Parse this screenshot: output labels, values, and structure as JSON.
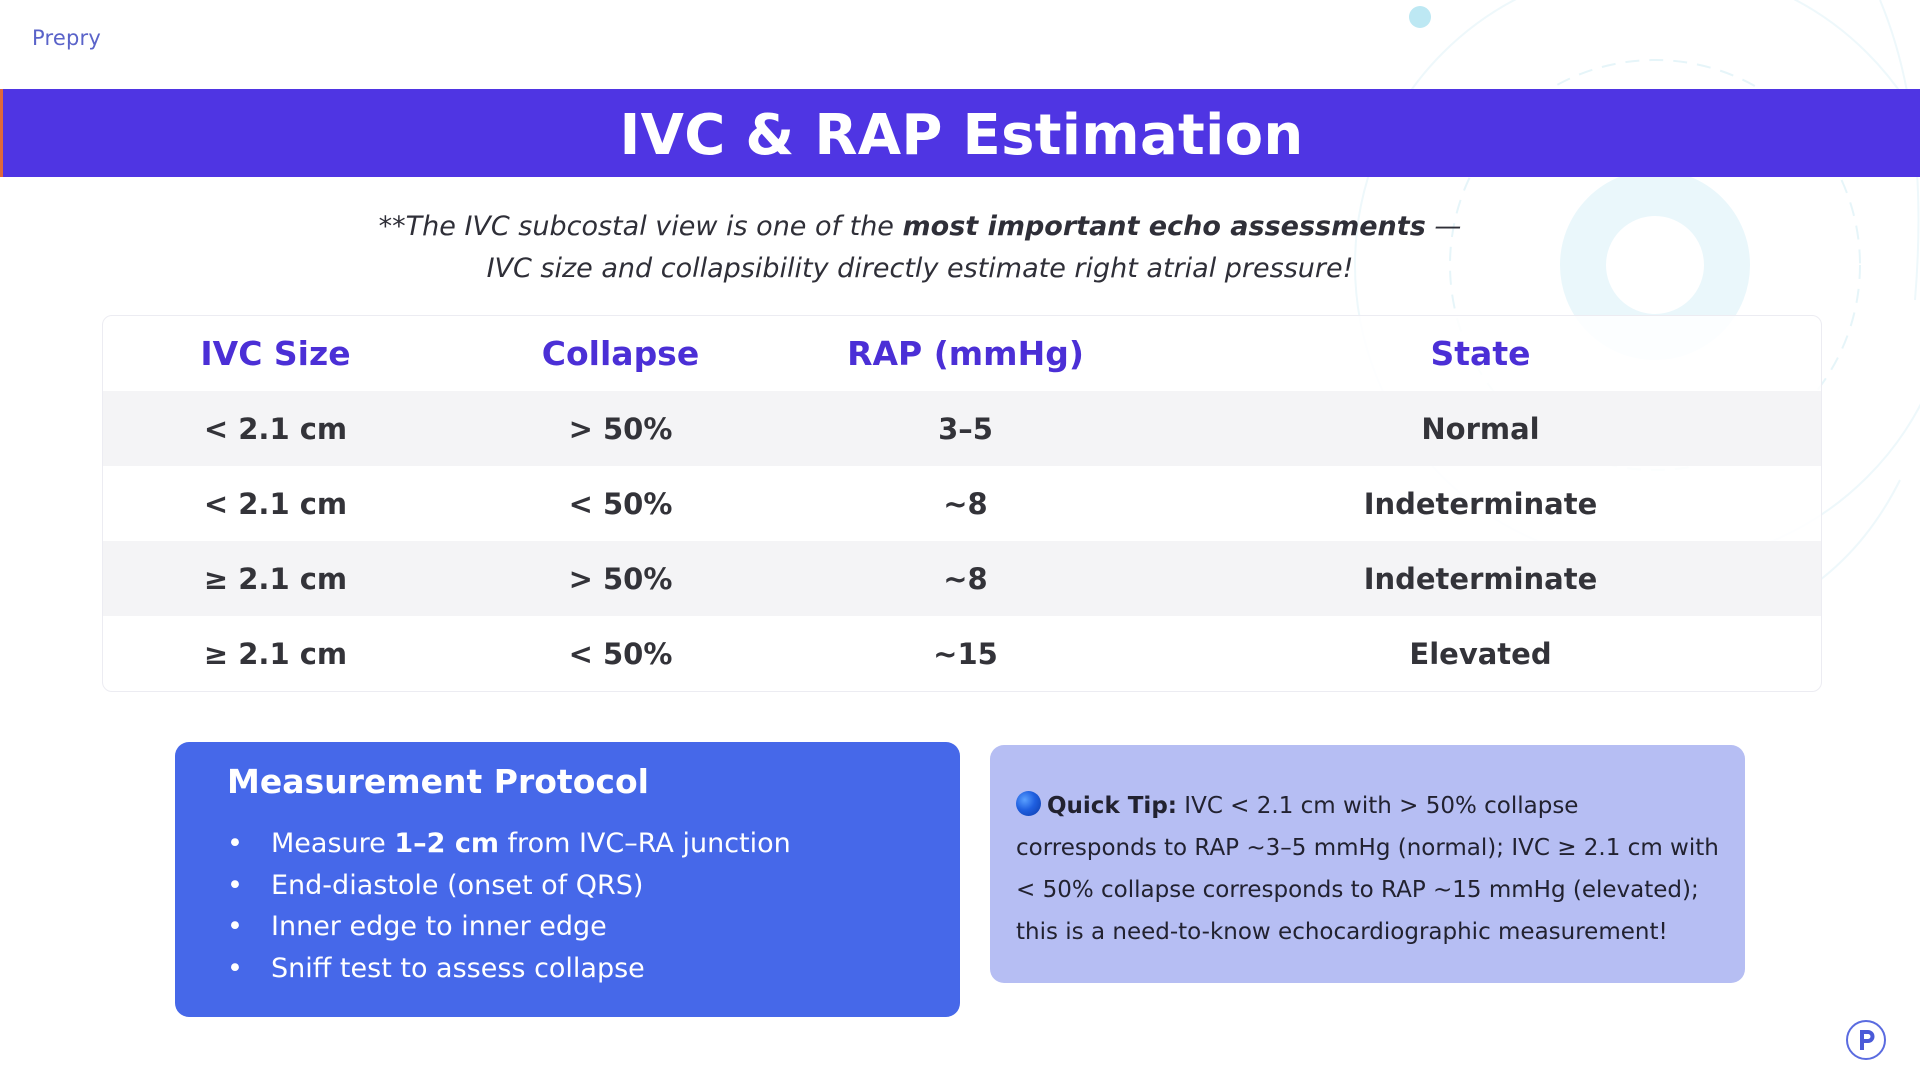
{
  "brand": "Prepry",
  "title": "IVC & RAP Estimation",
  "subtitle": {
    "line1_prefix": "**The IVC subcostal view is one of the ",
    "line1_bold": "most important echo assessments",
    "line1_suffix": " —",
    "line2": "IVC size and collapsibility directly estimate right atrial pressure!"
  },
  "table": {
    "headers": [
      "IVC Size",
      "Collapse",
      "RAP (mmHg)",
      "State"
    ],
    "rows": [
      [
        "< 2.1 cm",
        "> 50%",
        "3–5",
        "Normal"
      ],
      [
        "< 2.1 cm",
        "< 50%",
        "~8",
        "Indeterminate"
      ],
      [
        "≥ 2.1 cm",
        "> 50%",
        "~8",
        "Indeterminate"
      ],
      [
        "≥ 2.1 cm",
        "< 50%",
        "~15",
        "Elevated"
      ]
    ]
  },
  "protocol": {
    "title": "Measurement Protocol",
    "items": [
      {
        "prefix": "Measure ",
        "bold": "1–2 cm",
        "suffix": " from IVC–RA junction"
      },
      {
        "text": "End-diastole (onset of QRS)"
      },
      {
        "text": "Inner edge to inner edge"
      },
      {
        "text": "Sniff test to assess collapse"
      }
    ],
    "bullet": "•"
  },
  "tip": {
    "icon": "blue-circle-icon",
    "label": "Quick Tip:",
    "text": " IVC < 2.1 cm with > 50% collapse corresponds to RAP ~3–5 mmHg (normal); IVC ≥ 2.1 cm with < 50% collapse corresponds to RAP ~15 mmHg (elevated); this is a need-to-know echocardiographic measurement!"
  },
  "logo": {
    "letter": "P",
    "icon": "prepry-logo-icon"
  },
  "colors": {
    "title_bar": "#4f35e3",
    "header_text": "#4b2fd6",
    "protocol_card": "#4668e9",
    "tip_card": "#b6bef3"
  }
}
